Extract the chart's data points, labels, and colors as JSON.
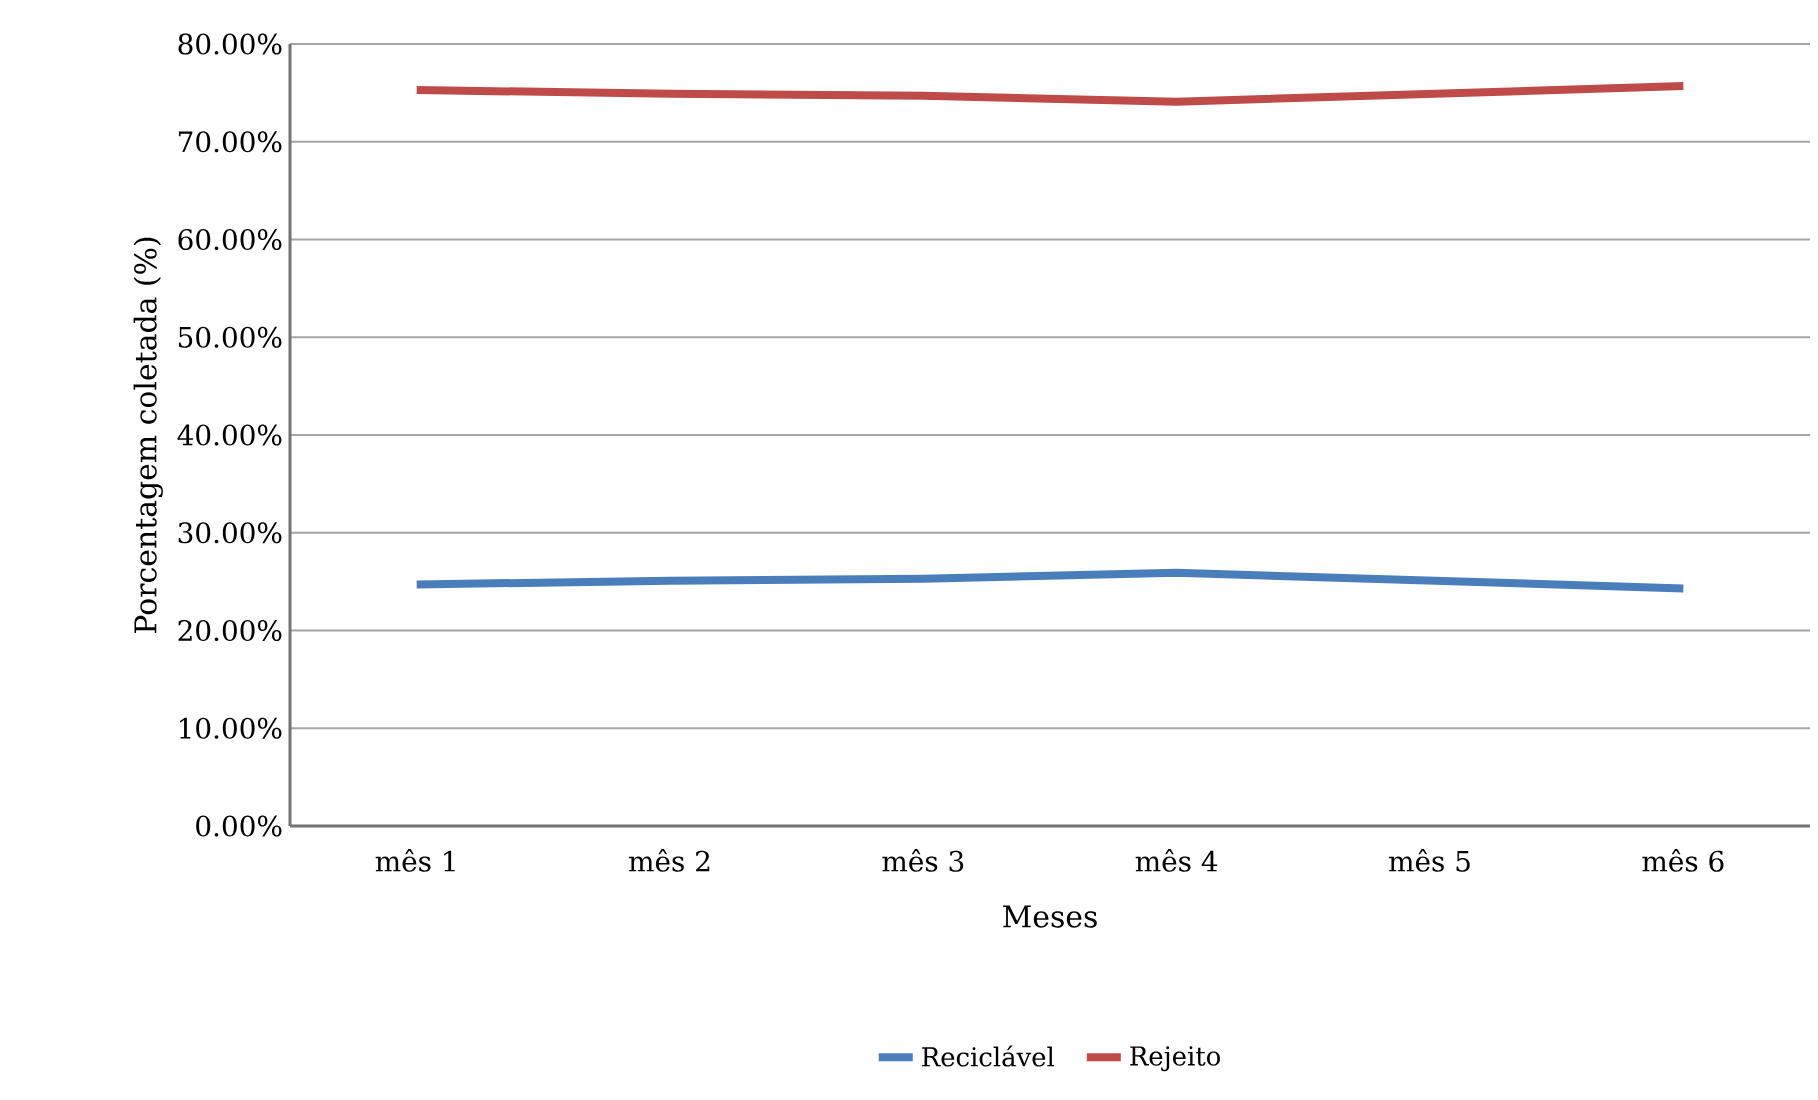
{
  "chart_data": {
    "type": "line",
    "xlabel": "Meses",
    "ylabel": "Porcentagem coletada (%)",
    "categories": [
      "mês 1",
      "mês 2",
      "mês 3",
      "mês 4",
      "mês 5",
      "mês 6"
    ],
    "series": [
      {
        "name": "Reciclável",
        "color": "#4a7ebb",
        "values": [
          24.7,
          25.1,
          25.3,
          25.9,
          25.1,
          24.3
        ]
      },
      {
        "name": "Rejeito",
        "color": "#be4b48",
        "values": [
          75.3,
          74.9,
          74.7,
          74.1,
          74.9,
          75.7
        ]
      }
    ],
    "ylim": [
      0,
      80
    ],
    "yticks": [
      {
        "value": 0,
        "label": "0.00%"
      },
      {
        "value": 10,
        "label": "10.00%"
      },
      {
        "value": 20,
        "label": "20.00%"
      },
      {
        "value": 30,
        "label": "30.00%"
      },
      {
        "value": 40,
        "label": "40.00%"
      },
      {
        "value": 50,
        "label": "50.00%"
      },
      {
        "value": 60,
        "label": "60.00%"
      },
      {
        "value": 70,
        "label": "70.00%"
      },
      {
        "value": 80,
        "label": "80.00%"
      }
    ],
    "grid": "y",
    "legend": "bottom",
    "marker": "none",
    "line_style": "solid"
  }
}
